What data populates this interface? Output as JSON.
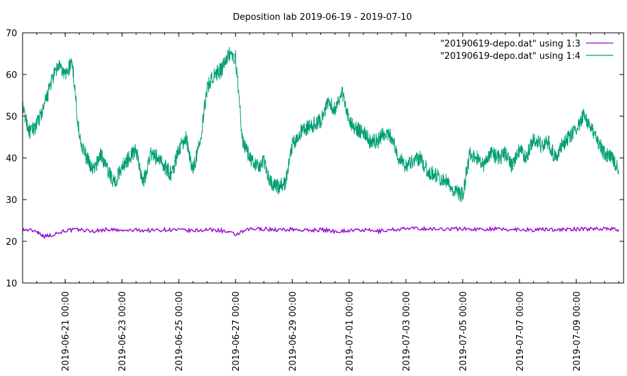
{
  "chart_data": {
    "type": "line",
    "title": "Deposition lab 2019-06-19 - 2019-07-10",
    "xlabel": "",
    "ylabel": "",
    "xlim": [
      "2019-06-19 12:00",
      "2019-07-10 16:00"
    ],
    "ylim": [
      10,
      70
    ],
    "yticks": [
      10,
      20,
      30,
      40,
      50,
      60,
      70
    ],
    "xticks": [
      "2019-06-21 00:00",
      "2019-06-23 00:00",
      "2019-06-25 00:00",
      "2019-06-27 00:00",
      "2019-06-29 00:00",
      "2019-07-01 00:00",
      "2019-07-03 00:00",
      "2019-07-05 00:00",
      "2019-07-07 00:00",
      "2019-07-09 00:00"
    ],
    "grid": false,
    "legend_position": "top-right",
    "series": [
      {
        "name": "\"20190619-depo.dat\" using 1:3",
        "color": "#9400d3",
        "x": [
          "2019-06-19 12:00",
          "2019-06-20 00:00",
          "2019-06-20 06:00",
          "2019-06-20 12:00",
          "2019-06-21 00:00",
          "2019-06-21 12:00",
          "2019-06-22 00:00",
          "2019-06-22 12:00",
          "2019-06-23 00:00",
          "2019-06-23 12:00",
          "2019-06-24 00:00",
          "2019-06-24 12:00",
          "2019-06-25 00:00",
          "2019-06-25 12:00",
          "2019-06-26 00:00",
          "2019-06-26 12:00",
          "2019-06-27 00:00",
          "2019-06-27 12:00",
          "2019-06-28 00:00",
          "2019-06-28 12:00",
          "2019-06-29 00:00",
          "2019-06-29 12:00",
          "2019-06-30 00:00",
          "2019-06-30 12:00",
          "2019-07-01 00:00",
          "2019-07-01 12:00",
          "2019-07-02 00:00",
          "2019-07-02 12:00",
          "2019-07-03 00:00",
          "2019-07-03 12:00",
          "2019-07-04 00:00",
          "2019-07-04 12:00",
          "2019-07-05 00:00",
          "2019-07-05 12:00",
          "2019-07-06 00:00",
          "2019-07-06 12:00",
          "2019-07-07 00:00",
          "2019-07-07 12:00",
          "2019-07-08 00:00",
          "2019-07-08 12:00",
          "2019-07-09 00:00",
          "2019-07-09 12:00",
          "2019-07-10 00:00",
          "2019-07-10 12:00"
        ],
        "values": [
          22.8,
          22.5,
          21.2,
          21.5,
          22.6,
          22.8,
          22.4,
          22.9,
          22.5,
          22.7,
          22.6,
          22.8,
          22.7,
          22.5,
          22.8,
          22.6,
          21.6,
          22.9,
          23.0,
          22.7,
          22.9,
          22.6,
          22.8,
          22.4,
          22.6,
          22.7,
          22.4,
          22.8,
          23.0,
          23.1,
          22.9,
          23.0,
          23.0,
          22.9,
          23.0,
          22.8,
          22.9,
          22.7,
          22.9,
          22.8,
          22.9,
          23.0,
          23.1,
          22.8
        ]
      },
      {
        "name": "\"20190619-depo.dat\" using 1:4",
        "color": "#009e73",
        "x": [
          "2019-06-19 12:00",
          "2019-06-19 18:00",
          "2019-06-20 00:00",
          "2019-06-20 06:00",
          "2019-06-20 12:00",
          "2019-06-20 18:00",
          "2019-06-21 00:00",
          "2019-06-21 06:00",
          "2019-06-21 12:00",
          "2019-06-21 18:00",
          "2019-06-22 00:00",
          "2019-06-22 06:00",
          "2019-06-22 12:00",
          "2019-06-22 18:00",
          "2019-06-23 00:00",
          "2019-06-23 06:00",
          "2019-06-23 12:00",
          "2019-06-23 18:00",
          "2019-06-24 00:00",
          "2019-06-24 06:00",
          "2019-06-24 12:00",
          "2019-06-24 18:00",
          "2019-06-25 00:00",
          "2019-06-25 06:00",
          "2019-06-25 12:00",
          "2019-06-25 18:00",
          "2019-06-26 00:00",
          "2019-06-26 06:00",
          "2019-06-26 12:00",
          "2019-06-26 18:00",
          "2019-06-27 00:00",
          "2019-06-27 06:00",
          "2019-06-27 12:00",
          "2019-06-27 18:00",
          "2019-06-28 00:00",
          "2019-06-28 06:00",
          "2019-06-28 12:00",
          "2019-06-28 18:00",
          "2019-06-29 00:00",
          "2019-06-29 06:00",
          "2019-06-29 12:00",
          "2019-06-29 18:00",
          "2019-06-30 00:00",
          "2019-06-30 06:00",
          "2019-06-30 12:00",
          "2019-06-30 18:00",
          "2019-07-01 00:00",
          "2019-07-01 06:00",
          "2019-07-01 12:00",
          "2019-07-01 18:00",
          "2019-07-02 00:00",
          "2019-07-02 06:00",
          "2019-07-02 12:00",
          "2019-07-02 18:00",
          "2019-07-03 00:00",
          "2019-07-03 06:00",
          "2019-07-03 12:00",
          "2019-07-03 18:00",
          "2019-07-04 00:00",
          "2019-07-04 06:00",
          "2019-07-04 12:00",
          "2019-07-04 18:00",
          "2019-07-05 00:00",
          "2019-07-05 06:00",
          "2019-07-05 12:00",
          "2019-07-05 18:00",
          "2019-07-06 00:00",
          "2019-07-06 06:00",
          "2019-07-06 12:00",
          "2019-07-06 18:00",
          "2019-07-07 00:00",
          "2019-07-07 06:00",
          "2019-07-07 12:00",
          "2019-07-07 18:00",
          "2019-07-08 00:00",
          "2019-07-08 06:00",
          "2019-07-08 12:00",
          "2019-07-08 18:00",
          "2019-07-09 00:00",
          "2019-07-09 06:00",
          "2019-07-09 12:00",
          "2019-07-09 18:00",
          "2019-07-10 00:00",
          "2019-07-10 06:00",
          "2019-07-10 12:00"
        ],
        "values": [
          52,
          46,
          48,
          52,
          58,
          62,
          60,
          63,
          45,
          40,
          37,
          41,
          37,
          34,
          38,
          40,
          42,
          34,
          41,
          40,
          38,
          36,
          42,
          45,
          37,
          44,
          57,
          60,
          61,
          65,
          64,
          44,
          40,
          38,
          39,
          34,
          33,
          34,
          43,
          46,
          47,
          48,
          49,
          53,
          52,
          56,
          49,
          47,
          46,
          44,
          44,
          46,
          45,
          40,
          38,
          39,
          40,
          37,
          36,
          35,
          34,
          32,
          31,
          41,
          40,
          38,
          41,
          40,
          41,
          38,
          42,
          40,
          45,
          43,
          44,
          40,
          43,
          45,
          47,
          50,
          48,
          44,
          41,
          40,
          37
        ]
      }
    ]
  }
}
